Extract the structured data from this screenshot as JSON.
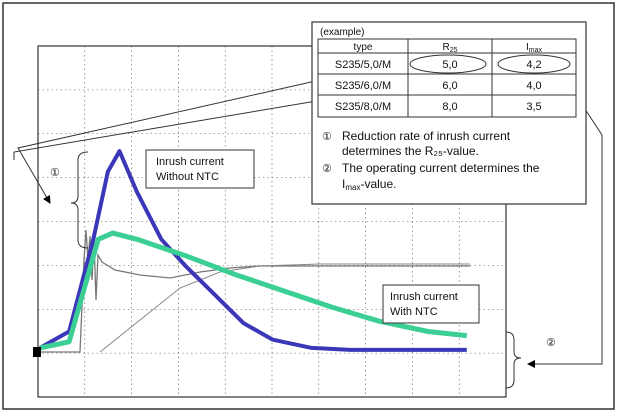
{
  "example_box": {
    "heading": "(example)",
    "table": {
      "headers": [
        "type",
        "R",
        "I"
      ],
      "header_subscripts": [
        "",
        "25",
        "max"
      ],
      "rows": [
        [
          "S235/5,0/M",
          "5,0",
          "4,2"
        ],
        [
          "S235/6,0/M",
          "6,0",
          "4,0"
        ],
        [
          "S235/8,0/M",
          "8,0",
          "3,5"
        ]
      ]
    },
    "notes": [
      {
        "marker": "①",
        "lines": [
          "Reduction rate of inrush current",
          "determines the R₂₅-value."
        ]
      },
      {
        "marker": "②",
        "lines": [
          "The operating current determines the",
          "I"
        ],
        "tail_sub": "max",
        "tail": "-value."
      }
    ]
  },
  "labels": {
    "without_ntc": [
      "Inrush current",
      "Without NTC"
    ],
    "with_ntc": [
      "Inrush current",
      "With NTC"
    ],
    "marker_1": "①",
    "marker_2": "②"
  },
  "colors": {
    "without_ntc": "#3a37b8",
    "with_ntc": "#3ccf95",
    "grid": "#555555",
    "frame": "#333333"
  },
  "chart_data": {
    "type": "line",
    "title": "",
    "xlabel": "",
    "ylabel": "",
    "grid": true,
    "series": [
      {
        "name": "Inrush current Without NTC",
        "x": [
          0,
          0.3,
          0.55,
          0.7,
          0.82,
          1.0,
          1.25,
          1.5,
          1.8,
          2.1,
          2.4,
          2.8,
          3.2,
          3.6,
          4.0,
          4.4
        ],
        "y": [
          0.02,
          0.1,
          0.55,
          0.88,
          0.98,
          0.78,
          0.55,
          0.42,
          0.28,
          0.14,
          0.06,
          0.02,
          0.01,
          0.01,
          0.01,
          0.01
        ]
      },
      {
        "name": "Inrush current With NTC",
        "x": [
          0,
          0.3,
          0.45,
          0.6,
          0.75,
          1.0,
          1.5,
          2.0,
          2.5,
          3.0,
          3.5,
          4.0,
          4.4
        ],
        "y": [
          0.02,
          0.05,
          0.3,
          0.55,
          0.58,
          0.55,
          0.47,
          0.38,
          0.3,
          0.22,
          0.15,
          0.1,
          0.08
        ]
      }
    ]
  }
}
